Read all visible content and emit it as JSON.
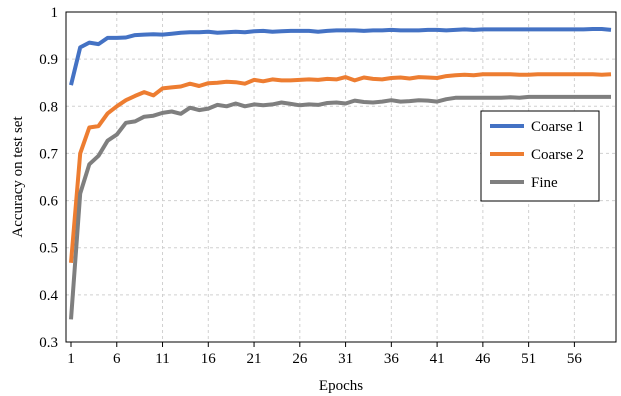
{
  "chart_data": {
    "type": "line",
    "xlabel": "Epochs",
    "ylabel": "Accuracy on test set",
    "xlim": [
      1,
      60
    ],
    "ylim": [
      0.3,
      1.0
    ],
    "xticks": [
      1,
      6,
      11,
      16,
      21,
      26,
      31,
      36,
      41,
      46,
      51,
      56
    ],
    "yticks": [
      0.3,
      0.4,
      0.5,
      0.6,
      0.7,
      0.8,
      0.9,
      1.0
    ],
    "ytick_labels": [
      "0.3",
      "0.4",
      "0.5",
      "0.6",
      "0.7",
      "0.8",
      "0.9",
      "1"
    ],
    "grid": true,
    "legend_position": "right",
    "x": [
      1,
      2,
      3,
      4,
      5,
      6,
      7,
      8,
      9,
      10,
      11,
      12,
      13,
      14,
      15,
      16,
      17,
      18,
      19,
      20,
      21,
      22,
      23,
      24,
      25,
      26,
      27,
      28,
      29,
      30,
      31,
      32,
      33,
      34,
      35,
      36,
      37,
      38,
      39,
      40,
      41,
      42,
      43,
      44,
      45,
      46,
      47,
      48,
      49,
      50,
      51,
      52,
      53,
      54,
      55,
      56,
      57,
      58,
      59,
      60
    ],
    "series": [
      {
        "name": "Coarse 1",
        "color": "#4472C4",
        "values": [
          0.845,
          0.925,
          0.935,
          0.932,
          0.945,
          0.945,
          0.946,
          0.951,
          0.952,
          0.953,
          0.952,
          0.954,
          0.956,
          0.957,
          0.957,
          0.958,
          0.956,
          0.957,
          0.958,
          0.957,
          0.959,
          0.96,
          0.958,
          0.959,
          0.96,
          0.96,
          0.96,
          0.958,
          0.96,
          0.961,
          0.961,
          0.961,
          0.96,
          0.961,
          0.961,
          0.962,
          0.961,
          0.961,
          0.961,
          0.962,
          0.962,
          0.961,
          0.962,
          0.963,
          0.962,
          0.963,
          0.963,
          0.963,
          0.963,
          0.963,
          0.963,
          0.963,
          0.963,
          0.963,
          0.963,
          0.963,
          0.963,
          0.964,
          0.964,
          0.962
        ]
      },
      {
        "name": "Coarse 2",
        "color": "#ED7D31",
        "values": [
          0.468,
          0.7,
          0.755,
          0.758,
          0.785,
          0.8,
          0.813,
          0.822,
          0.83,
          0.823,
          0.838,
          0.84,
          0.842,
          0.848,
          0.843,
          0.849,
          0.85,
          0.852,
          0.851,
          0.848,
          0.856,
          0.853,
          0.857,
          0.855,
          0.855,
          0.856,
          0.857,
          0.856,
          0.858,
          0.857,
          0.862,
          0.855,
          0.861,
          0.858,
          0.857,
          0.86,
          0.861,
          0.859,
          0.862,
          0.861,
          0.86,
          0.864,
          0.866,
          0.867,
          0.866,
          0.868,
          0.868,
          0.868,
          0.868,
          0.867,
          0.867,
          0.868,
          0.868,
          0.868,
          0.868,
          0.868,
          0.868,
          0.868,
          0.867,
          0.868
        ]
      },
      {
        "name": "Fine",
        "color": "#7F7F7F",
        "values": [
          0.348,
          0.615,
          0.677,
          0.695,
          0.727,
          0.74,
          0.765,
          0.768,
          0.778,
          0.78,
          0.786,
          0.789,
          0.784,
          0.797,
          0.792,
          0.795,
          0.803,
          0.8,
          0.806,
          0.8,
          0.804,
          0.802,
          0.804,
          0.808,
          0.805,
          0.802,
          0.804,
          0.803,
          0.807,
          0.808,
          0.806,
          0.812,
          0.809,
          0.808,
          0.81,
          0.813,
          0.81,
          0.811,
          0.813,
          0.812,
          0.81,
          0.815,
          0.818,
          0.818,
          0.818,
          0.818,
          0.818,
          0.818,
          0.819,
          0.818,
          0.82,
          0.82,
          0.82,
          0.82,
          0.82,
          0.82,
          0.82,
          0.82,
          0.82,
          0.82
        ]
      }
    ]
  }
}
